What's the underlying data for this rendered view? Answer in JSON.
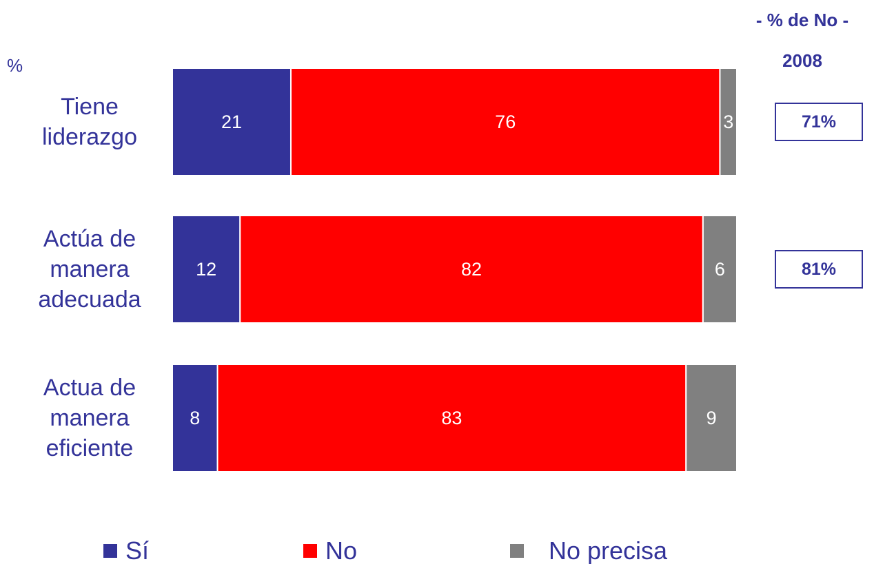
{
  "unit_label": "%",
  "side_header": {
    "line1": "- % de No -",
    "line2": "2008"
  },
  "colors": {
    "si": "#333399",
    "no": "#ff0000",
    "no_precisa": "#808080",
    "text": "#333399"
  },
  "chart_data": {
    "type": "bar",
    "orientation": "horizontal",
    "stacked": true,
    "categories": [
      [
        "Tiene",
        "liderazgo"
      ],
      [
        "Actúa de",
        "manera",
        "adecuada"
      ],
      [
        "Actua de",
        "manera",
        "eficiente"
      ]
    ],
    "series": [
      {
        "name": "Sí",
        "values": [
          21,
          12,
          8
        ],
        "color": "#333399"
      },
      {
        "name": "No",
        "values": [
          76,
          82,
          83
        ],
        "color": "#ff0000"
      },
      {
        "name": "No precisa",
        "values": [
          3,
          6,
          9
        ],
        "color": "#808080"
      }
    ],
    "xlim": [
      0,
      100
    ],
    "grid": false,
    "legend_position": "bottom",
    "side_values_2008": [
      "71%",
      "81%",
      null
    ]
  }
}
